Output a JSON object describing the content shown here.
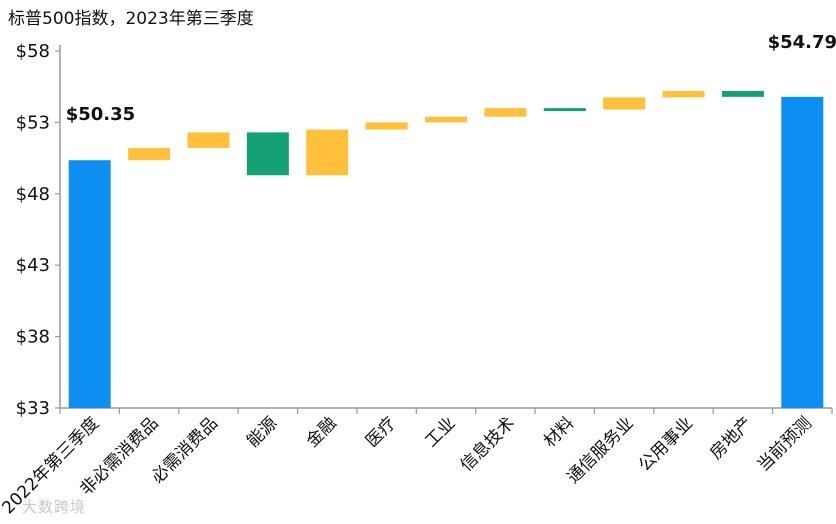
{
  "chart_data": {
    "type": "waterfall",
    "title": "标普500指数，2023年第三季度",
    "ylim": [
      33,
      58
    ],
    "yticks": [
      33,
      38,
      43,
      48,
      53,
      58
    ],
    "ytick_labels": [
      "$33",
      "$38",
      "$43",
      "$48",
      "$53",
      "$58"
    ],
    "categories": [
      "2022年第三季度",
      "非必需消费品",
      "必需消费品",
      "能源",
      "金融",
      "医疗",
      "工业",
      "信息技术",
      "材料",
      "通信服务业",
      "公用事业",
      "房地产",
      "当前预测"
    ],
    "bars": [
      {
        "kind": "total",
        "start": 33,
        "end": 50.35
      },
      {
        "kind": "change",
        "start": 50.35,
        "end": 51.2
      },
      {
        "kind": "change",
        "start": 51.2,
        "end": 52.3
      },
      {
        "kind": "change",
        "start": 52.3,
        "end": 49.3
      },
      {
        "kind": "change",
        "start": 49.3,
        "end": 52.5
      },
      {
        "kind": "change",
        "start": 52.5,
        "end": 53.0
      },
      {
        "kind": "change",
        "start": 53.0,
        "end": 53.4
      },
      {
        "kind": "change",
        "start": 53.4,
        "end": 54.0
      },
      {
        "kind": "change",
        "start": 54.0,
        "end": 53.9
      },
      {
        "kind": "change",
        "start": 53.9,
        "end": 54.75
      },
      {
        "kind": "change",
        "start": 54.75,
        "end": 55.2
      },
      {
        "kind": "change",
        "start": 55.2,
        "end": 54.79
      },
      {
        "kind": "total",
        "start": 33,
        "end": 54.79
      }
    ],
    "data_labels": [
      "$50.35",
      "$54.79"
    ],
    "colors": {
      "total": "#0d8ff2",
      "increase": "#ffc13b",
      "decrease": "#12a074",
      "axis": "#9a9a9a"
    }
  },
  "watermark": "大数跨境"
}
